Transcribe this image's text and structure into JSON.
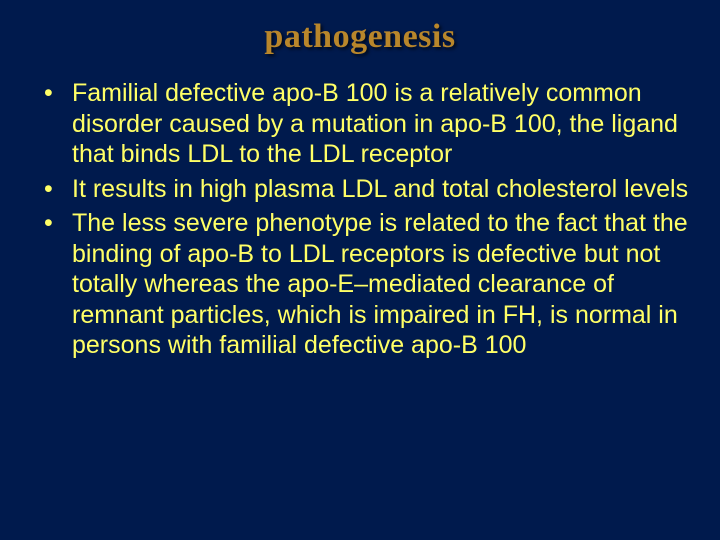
{
  "colors": {
    "background": "#001a4d",
    "title": "#b8862b",
    "body_text": "#ffff66"
  },
  "typography": {
    "title_font": "Georgia, serif",
    "title_fontsize_pt": 26,
    "title_weight": "bold",
    "body_font": "Arial, sans-serif",
    "body_fontsize_pt": 19,
    "line_height": 1.22
  },
  "title": "pathogenesis",
  "bullets": [
    "Familial defective apo-B 100 is a relatively common disorder caused by a mutation in apo-B 100, the ligand that binds LDL to the LDL receptor",
    "It results in high plasma LDL and total cholesterol levels",
    "The less severe phenotype is related to the fact that the binding of apo-B to LDL receptors is defective but not totally whereas the apo-E–mediated clearance of remnant particles, which is impaired in FH, is normal in persons with familial defective apo-B 100"
  ]
}
